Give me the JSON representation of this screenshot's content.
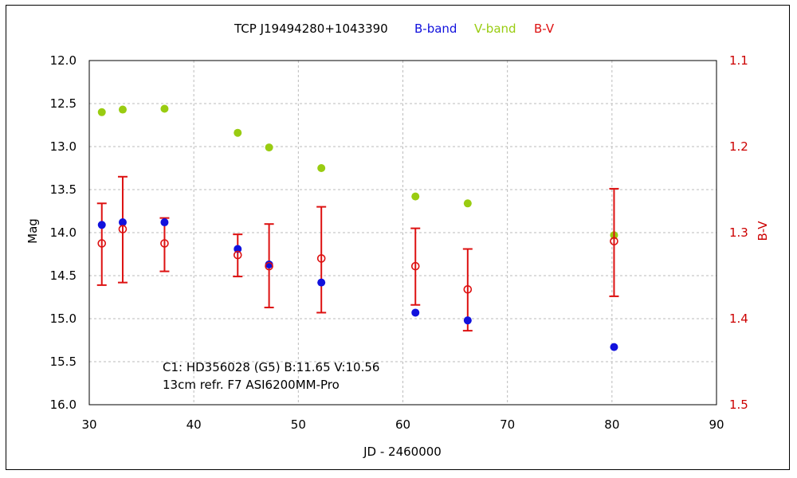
{
  "chart_data": {
    "type": "scatter",
    "title": "TCP J19494280+1043390",
    "xlabel": "JD - 2460000",
    "ylabel_left": "Mag",
    "ylabel_right": "B-V",
    "xlim": [
      30,
      90
    ],
    "ylim_left": [
      12.0,
      16.0
    ],
    "ylim_right": [
      1.1,
      1.5
    ],
    "y_inverted": true,
    "grid": true,
    "x_ticks": [
      "30",
      "40",
      "50",
      "60",
      "70",
      "80",
      "90"
    ],
    "y_ticks_left": [
      "12.0",
      "12.5",
      "13.0",
      "13.5",
      "14.0",
      "14.5",
      "15.0",
      "15.5",
      "16.0"
    ],
    "y_ticks_right": [
      "1.1",
      "1.2",
      "1.3",
      "1.4",
      "1.5"
    ],
    "legend": [
      "B-band",
      "V-band",
      "B-V"
    ],
    "colors": {
      "b_band": "#1111dd",
      "v_band": "#99cc11",
      "b_v": "#dd1111"
    },
    "series": [
      {
        "name": "B-band",
        "axis": "left",
        "x": [
          31.2,
          33.2,
          37.2,
          44.2,
          47.2,
          52.2,
          61.2,
          66.2,
          80.2
        ],
        "y": [
          13.91,
          13.88,
          13.88,
          14.19,
          14.37,
          14.58,
          14.93,
          15.02,
          15.33
        ]
      },
      {
        "name": "V-band",
        "axis": "left",
        "x": [
          31.2,
          33.2,
          37.2,
          44.2,
          47.2,
          52.2,
          61.2,
          66.2,
          80.2
        ],
        "y": [
          12.6,
          12.57,
          12.56,
          12.84,
          13.01,
          13.25,
          13.58,
          13.66,
          14.03
        ]
      },
      {
        "name": "B-V",
        "axis": "right",
        "x": [
          31.2,
          33.2,
          37.2,
          44.2,
          47.2,
          52.2,
          61.2,
          66.2,
          80.2
        ],
        "y": [
          1.3125,
          1.296,
          1.3125,
          1.326,
          1.339,
          1.33,
          1.339,
          1.366,
          1.31
        ],
        "err_low": [
          1.266,
          1.235,
          1.283,
          1.302,
          1.29,
          1.27,
          1.295,
          1.319,
          1.249
        ],
        "err_high": [
          1.361,
          1.358,
          1.345,
          1.351,
          1.387,
          1.393,
          1.384,
          1.414,
          1.374
        ]
      }
    ],
    "annotations": [
      "C1: HD356028 (G5)  B:11.65  V:10.56",
      "13cm  refr.  F7   ASI6200MM-Pro"
    ]
  }
}
